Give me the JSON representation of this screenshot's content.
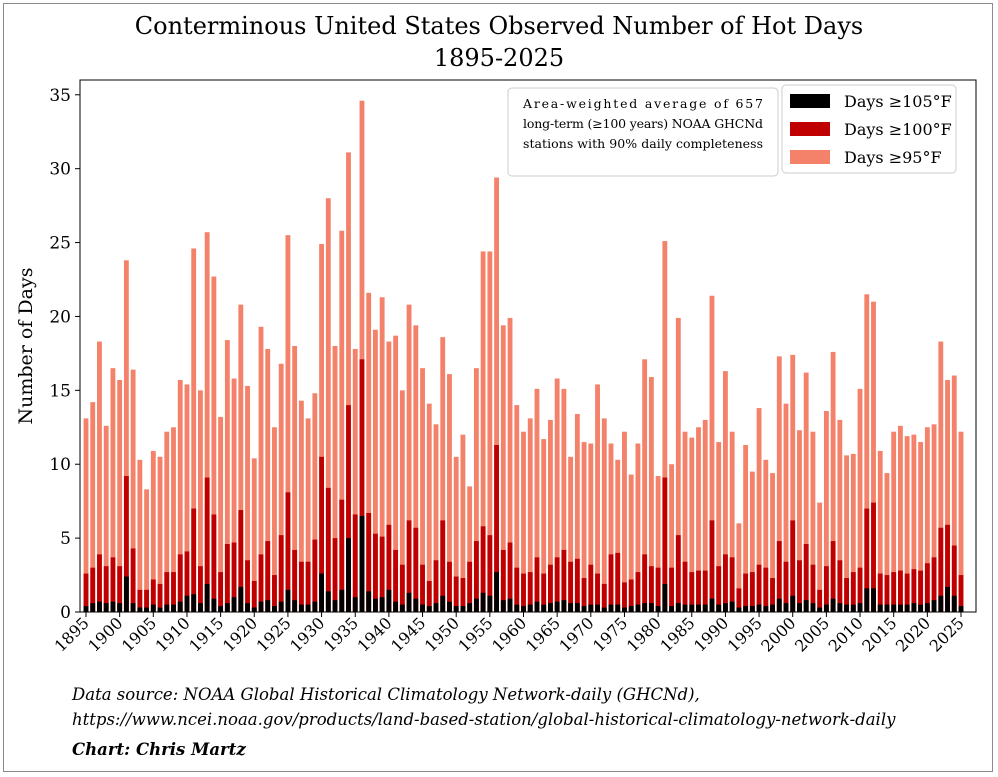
{
  "chart_data": {
    "type": "bar",
    "stacking": "overlay",
    "title": "Conterminous United States Observed Number of Hot Days",
    "subtitle": "1895-2025",
    "ylabel": "Number of Days",
    "xlabel": "",
    "ylim": [
      0,
      36
    ],
    "yticks": [
      0,
      5,
      10,
      15,
      20,
      25,
      30,
      35
    ],
    "xticks": [
      1895,
      1900,
      1905,
      1910,
      1915,
      1920,
      1925,
      1930,
      1935,
      1940,
      1945,
      1950,
      1955,
      1960,
      1965,
      1970,
      1975,
      1980,
      1985,
      1990,
      1995,
      2000,
      2005,
      2010,
      2015,
      2020,
      2025
    ],
    "x_start": 1895,
    "x_end": 2025,
    "legend_position": "top-right",
    "annotation": "Area-weighted average of 657 long-term (≥100 years) NOAA GHCNd stations with 90% daily completeness",
    "series": [
      {
        "name": "Days ≥95°F",
        "color": "#f4826a",
        "values": [
          13.1,
          14.2,
          18.3,
          12.6,
          16.5,
          15.7,
          23.8,
          16.4,
          10.3,
          8.3,
          10.9,
          10.5,
          12.2,
          12.5,
          15.7,
          15.4,
          24.6,
          15.0,
          25.7,
          22.7,
          13.2,
          18.4,
          15.8,
          20.8,
          15.3,
          10.4,
          19.3,
          17.8,
          12.5,
          16.8,
          25.5,
          18.0,
          14.3,
          13.1,
          14.8,
          24.9,
          28.0,
          18.0,
          25.8,
          31.1,
          17.8,
          34.6,
          21.6,
          19.1,
          21.3,
          18.3,
          18.7,
          15.0,
          20.8,
          19.4,
          16.5,
          14.1,
          12.7,
          18.6,
          16.1,
          10.5,
          12.0,
          8.5,
          16.5,
          24.4,
          24.4,
          29.4,
          19.4,
          19.9,
          14.0,
          12.2,
          13.1,
          15.1,
          11.7,
          13.0,
          15.8,
          15.1,
          10.5,
          13.4,
          11.5,
          11.4,
          15.4,
          13.1,
          11.4,
          10.3,
          12.2,
          9.3,
          11.4,
          17.1,
          15.9,
          9.2,
          25.1,
          10.0,
          19.9,
          12.2,
          11.8,
          12.5,
          13.0,
          21.4,
          11.5,
          16.3,
          12.2,
          6.0,
          11.3,
          9.5,
          13.8,
          10.3,
          9.4,
          17.3,
          14.1,
          17.4,
          12.3,
          16.2,
          12.2,
          7.4,
          13.6,
          17.6,
          13.0,
          10.6,
          10.7,
          15.1,
          21.5,
          21.0,
          10.9,
          9.4,
          12.2,
          12.6,
          11.9,
          12.0,
          11.5,
          12.5,
          12.7,
          18.3,
          15.7,
          16.0,
          12.2
        ]
      },
      {
        "name": "Days ≥100°F",
        "color": "#c00000",
        "values": [
          2.6,
          3.0,
          3.9,
          3.1,
          3.7,
          3.1,
          9.2,
          4.3,
          1.5,
          1.5,
          2.2,
          1.9,
          2.7,
          2.7,
          3.9,
          4.1,
          7.0,
          3.1,
          9.1,
          6.6,
          2.7,
          4.6,
          4.7,
          6.9,
          3.5,
          2.1,
          3.9,
          4.8,
          2.5,
          5.2,
          8.1,
          4.2,
          3.4,
          3.4,
          4.9,
          10.5,
          8.4,
          5.0,
          7.6,
          14.0,
          6.6,
          17.1,
          6.7,
          5.3,
          5.1,
          5.9,
          4.2,
          3.2,
          6.2,
          5.7,
          3.2,
          2.1,
          3.5,
          6.2,
          3.4,
          2.4,
          2.3,
          3.4,
          4.8,
          5.8,
          5.2,
          11.3,
          4.2,
          4.7,
          3.0,
          2.6,
          2.7,
          3.7,
          2.6,
          3.2,
          3.7,
          4.2,
          3.4,
          3.6,
          2.3,
          3.2,
          2.6,
          1.9,
          3.9,
          4.0,
          2.0,
          2.2,
          2.7,
          3.9,
          3.1,
          3.0,
          9.1,
          3.0,
          5.2,
          3.4,
          2.7,
          2.8,
          2.8,
          6.2,
          3.1,
          3.9,
          3.7,
          1.6,
          2.6,
          2.7,
          3.2,
          3.0,
          2.3,
          4.8,
          3.4,
          6.2,
          3.5,
          4.6,
          3.2,
          1.5,
          3.1,
          4.8,
          3.5,
          2.3,
          2.7,
          3.0,
          7.0,
          7.4,
          2.6,
          2.5,
          2.7,
          2.8,
          2.6,
          2.9,
          2.8,
          3.3,
          3.7,
          5.7,
          5.9,
          4.5,
          2.5
        ]
      },
      {
        "name": "Days ≥105°F",
        "color": "#000000",
        "values": [
          0.4,
          0.6,
          0.7,
          0.6,
          0.7,
          0.6,
          2.4,
          0.6,
          0.3,
          0.3,
          0.5,
          0.3,
          0.5,
          0.5,
          0.7,
          1.1,
          1.2,
          0.6,
          1.9,
          0.9,
          0.4,
          0.6,
          1.0,
          1.7,
          0.6,
          0.3,
          0.7,
          0.8,
          0.4,
          0.7,
          1.5,
          0.8,
          0.5,
          0.5,
          0.7,
          2.6,
          1.4,
          0.8,
          1.5,
          5.0,
          1.0,
          6.5,
          1.4,
          0.9,
          1.0,
          1.5,
          0.7,
          0.5,
          1.3,
          0.9,
          0.5,
          0.4,
          0.6,
          1.1,
          0.7,
          0.4,
          0.4,
          0.6,
          0.9,
          1.3,
          1.1,
          2.7,
          0.8,
          0.9,
          0.5,
          0.4,
          0.5,
          0.7,
          0.5,
          0.6,
          0.7,
          0.8,
          0.6,
          0.6,
          0.4,
          0.5,
          0.5,
          0.3,
          0.5,
          0.5,
          0.3,
          0.4,
          0.5,
          0.6,
          0.6,
          0.4,
          1.9,
          0.4,
          0.6,
          0.5,
          0.5,
          0.5,
          0.5,
          0.9,
          0.5,
          0.6,
          0.7,
          0.3,
          0.4,
          0.4,
          0.5,
          0.4,
          0.5,
          0.9,
          0.6,
          1.1,
          0.6,
          0.8,
          0.6,
          0.3,
          0.5,
          0.9,
          0.6,
          0.5,
          0.5,
          0.6,
          1.6,
          1.6,
          0.5,
          0.5,
          0.5,
          0.5,
          0.5,
          0.6,
          0.5,
          0.6,
          0.8,
          1.1,
          1.7,
          1.1,
          0.4
        ]
      }
    ]
  },
  "legend": [
    {
      "label": "Days ≥105°F",
      "color": "#000000"
    },
    {
      "label": "Days ≥100°F",
      "color": "#c00000"
    },
    {
      "label": "Days ≥95°F",
      "color": "#f4826a"
    }
  ],
  "footer": {
    "source_line1": "Data source: NOAA Global Historical Climatology Network-daily (GHCNd),",
    "source_line2": " https://www.ncei.noaa.gov/products/land-based-station/global-historical-climatology-network-daily",
    "credit": "Chart: Chris Martz"
  }
}
